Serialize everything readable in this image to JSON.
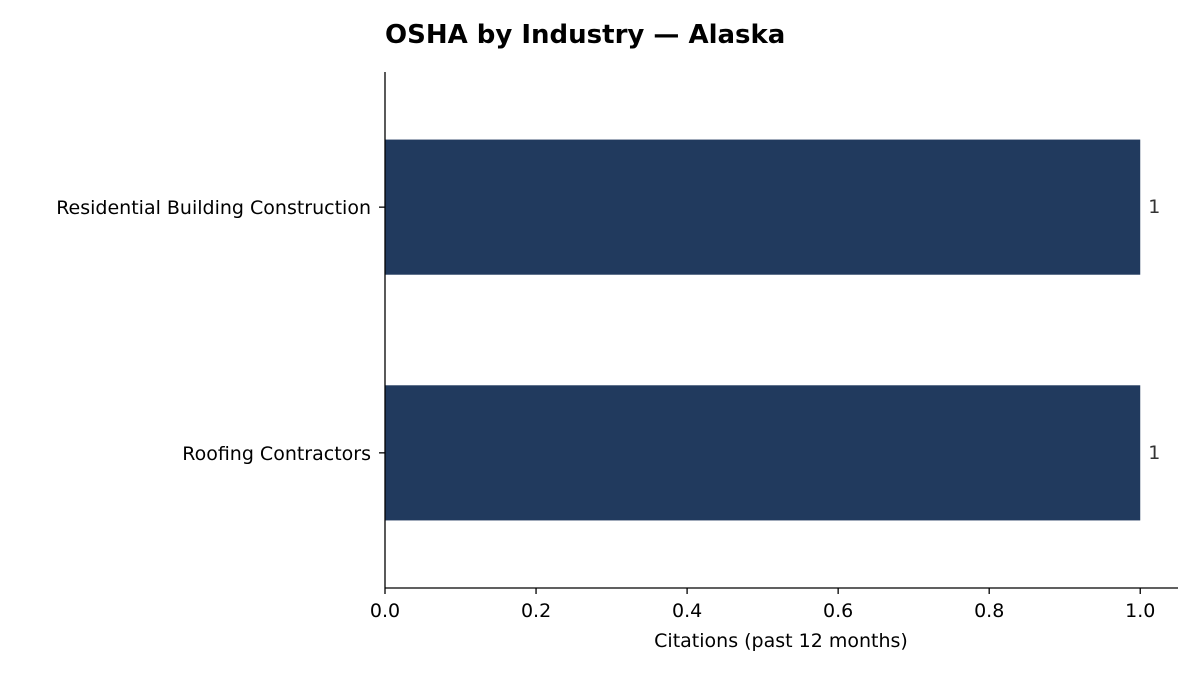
{
  "chart_data": {
    "type": "bar",
    "orientation": "horizontal",
    "title": "OSHA by Industry — Alaska",
    "xlabel": "Citations (past 12 months)",
    "ylabel": "",
    "categories": [
      "Residential Building Construction",
      "Roofing Contractors"
    ],
    "values": [
      1,
      1
    ],
    "data_labels": [
      "1",
      "1"
    ],
    "xlim": [
      0,
      1.05
    ],
    "xticks": [
      0.0,
      0.2,
      0.4,
      0.6,
      0.8,
      1.0
    ],
    "xtick_labels": [
      "0.0",
      "0.2",
      "0.4",
      "0.6",
      "0.8",
      "1.0"
    ],
    "grid": false,
    "bar_color": "#213a5e"
  }
}
